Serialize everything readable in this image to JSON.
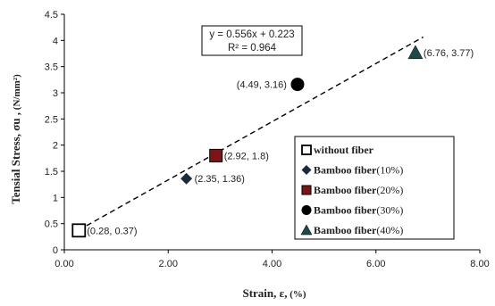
{
  "chart_data": {
    "type": "scatter",
    "x_label_main": "Strain, ε,",
    "x_label_unit": " (%)",
    "y_label_main": "Tensial Stress, σu ,",
    "y_label_unit": " (N/mm²)",
    "xlim": [
      0,
      8
    ],
    "ylim": [
      0,
      4.5
    ],
    "x_ticks": [
      0,
      2,
      4,
      6,
      8
    ],
    "x_tick_labels": [
      "0.00",
      "2.00",
      "4.00",
      "6.00",
      "8.00"
    ],
    "y_ticks": [
      0,
      0.5,
      1,
      1.5,
      2,
      2.5,
      3,
      3.5,
      4,
      4.5
    ],
    "y_tick_labels": [
      "0",
      "0.5",
      "1",
      "1.5",
      "2",
      "2.5",
      "3",
      "3.5",
      "4",
      "4.5"
    ],
    "grid": false,
    "legend_position": "bottom-right",
    "series": [
      {
        "name_bold": "without fiber",
        "name_pct": "",
        "marker": "open-square",
        "color": "#000000",
        "x": 0.28,
        "y": 0.37,
        "label": "(0.28, 0.37)"
      },
      {
        "name_bold": "Bamboo fiber",
        "name_pct": "(10%)",
        "marker": "diamond",
        "color": "#1c2a3a",
        "x": 2.35,
        "y": 1.36,
        "label": "(2.35, 1.36)"
      },
      {
        "name_bold": "Bamboo fiber",
        "name_pct": "(20%)",
        "marker": "filled-square",
        "color": "#7a1518",
        "x": 2.92,
        "y": 1.8,
        "label": "(2.92, 1.8)"
      },
      {
        "name_bold": "Bamboo fiber",
        "name_pct": "(30%)",
        "marker": "circle",
        "color": "#000000",
        "x": 4.49,
        "y": 3.16,
        "label": "(4.49, 3.16)"
      },
      {
        "name_bold": "Bamboo fiber",
        "name_pct": "(40%)",
        "marker": "triangle",
        "color": "#1c4a48",
        "x": 6.76,
        "y": 3.77,
        "label": "(6.76, 3.77)"
      }
    ],
    "trendline": {
      "slope": 0.556,
      "intercept": 0.223,
      "x_range": [
        0.28,
        6.76
      ],
      "style": "dashed",
      "equation": "y = 0.556x + 0.223",
      "r2": "R² = 0.964"
    }
  }
}
